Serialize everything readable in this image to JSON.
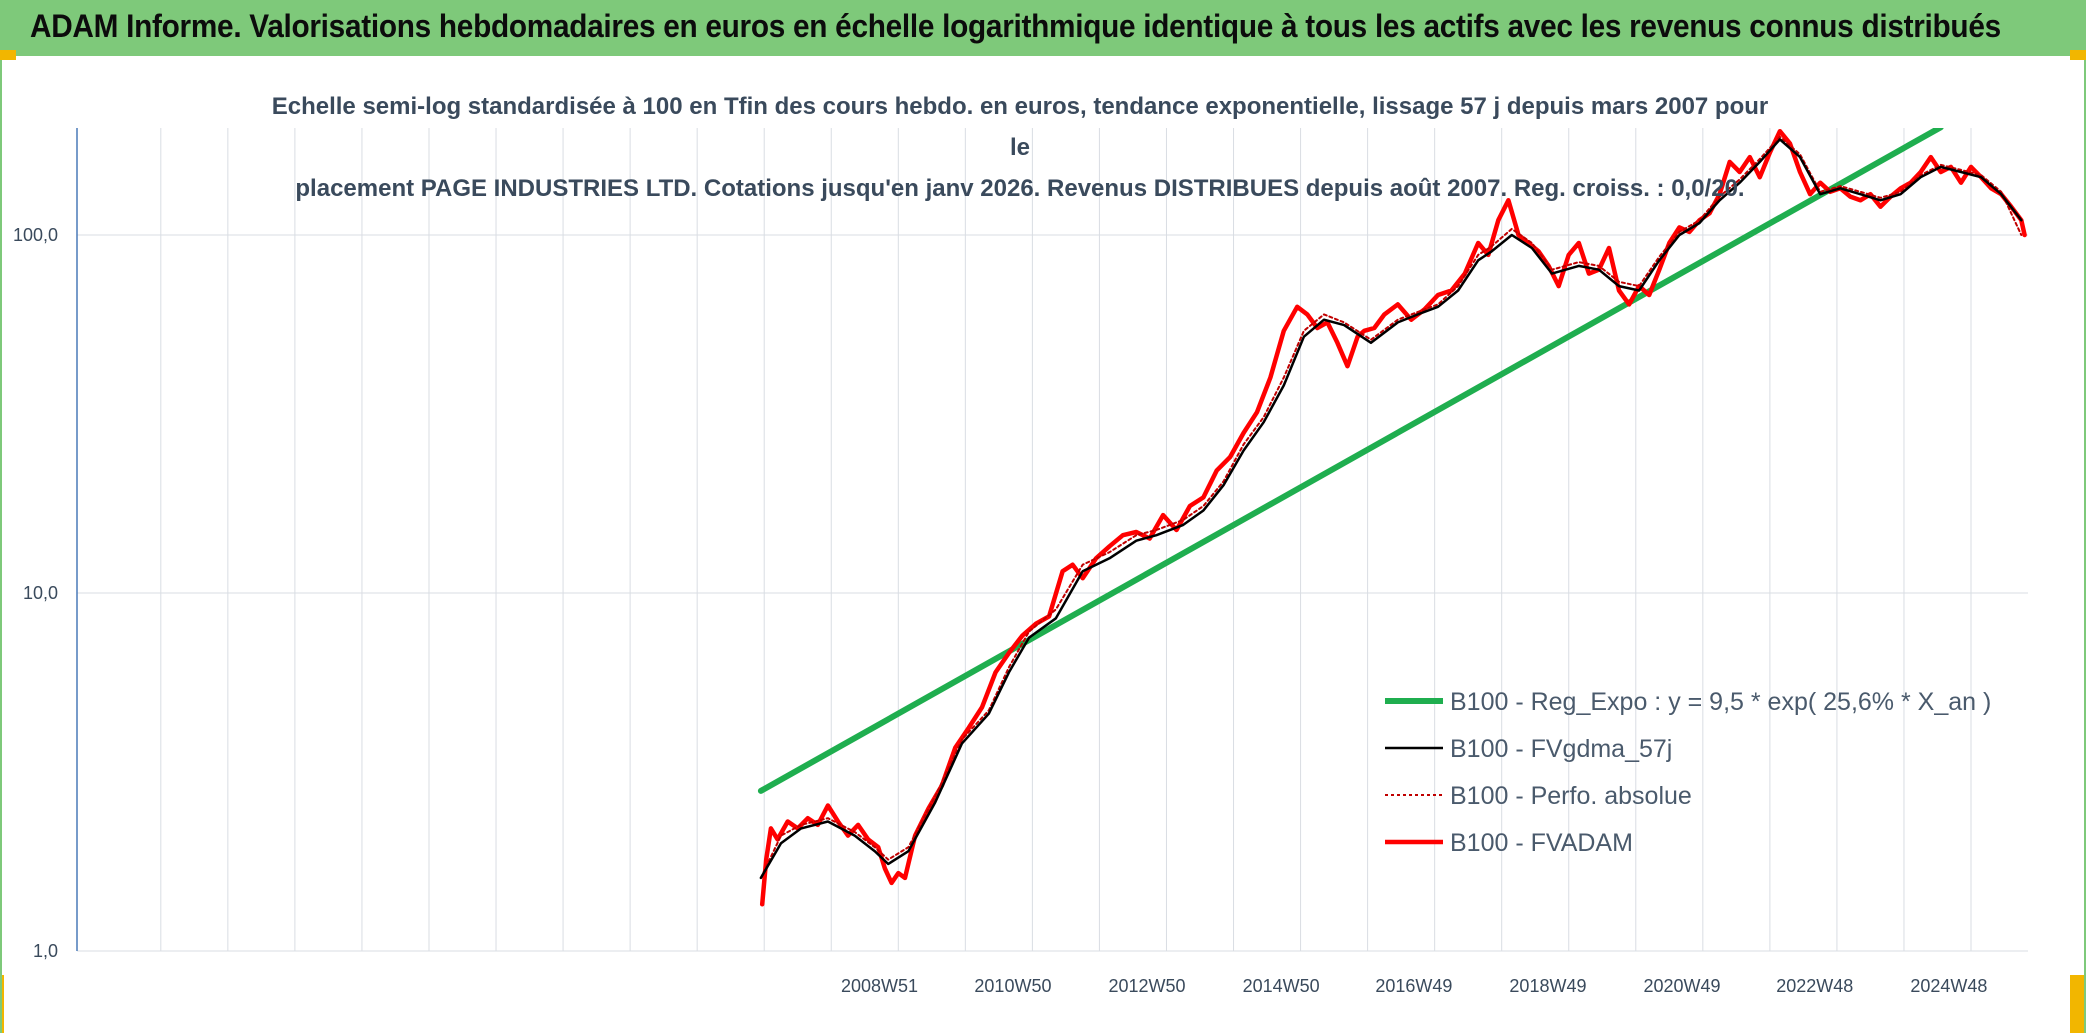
{
  "header": {
    "title": "ADAM Informe. Valorisations hebdomadaires en euros en échelle logarithmique identique à tous les actifs avec les revenus connus distribués"
  },
  "colors": {
    "header_bg": "#7ec97a",
    "corner_accent": "#f2b600",
    "reg_expo": "#1fae4f",
    "fvgdma": "#000000",
    "perfo": "#c00000",
    "fvadam": "#ff0000",
    "grid": "#d9dde3",
    "axis": "#4a7ab8"
  },
  "chart_data": {
    "type": "line",
    "subtitle_line1": "Echelle semi-log standardisée à 100 en Tfin des cours hebdo. en euros, tendance exponentielle, lissage 57 j depuis mars 2007 pour le",
    "subtitle_line2": "placement PAGE INDUSTRIES LTD. Cotations jusqu'en janv 2026. Revenus DISTRIBUES depuis août 2007. Reg. croiss. : 0,0/20.",
    "y_scale": "log",
    "ylim": [
      1,
      200
    ],
    "xlim": [
      1997.0,
      2026.1
    ],
    "y_ticks": [
      {
        "value": 1,
        "label": "1,0"
      },
      {
        "value": 10,
        "label": "10,0"
      },
      {
        "value": 100,
        "label": "100,0"
      }
    ],
    "x_ticks": [
      {
        "value": 2008.97,
        "label": "2008W51"
      },
      {
        "value": 2010.96,
        "label": "2010W50"
      },
      {
        "value": 2012.96,
        "label": "2012W50"
      },
      {
        "value": 2014.96,
        "label": "2014W50"
      },
      {
        "value": 2016.94,
        "label": "2016W49"
      },
      {
        "value": 2018.94,
        "label": "2018W49"
      },
      {
        "value": 2020.94,
        "label": "2020W49"
      },
      {
        "value": 2022.92,
        "label": "2022W48"
      },
      {
        "value": 2024.92,
        "label": "2024W48"
      }
    ],
    "grid": true,
    "legend_position": "right",
    "series": [
      {
        "name": "B100 - Reg_Expo : y = 9,5 * exp( 25,6% *  X_an )",
        "key": "reg_expo",
        "style": "solid-thick",
        "x": [
          2007.2,
          2024.8
        ],
        "y": [
          2.8,
          200
        ]
      },
      {
        "name": "B100 - FVgdma_57j",
        "key": "fvgdma",
        "style": "solid-thin",
        "x": [
          2007.2,
          2007.5,
          2007.8,
          2008.2,
          2008.6,
          2008.9,
          2009.1,
          2009.4,
          2009.8,
          2010.2,
          2010.6,
          2010.9,
          2011.2,
          2011.6,
          2012.0,
          2012.4,
          2012.8,
          2013.1,
          2013.5,
          2013.8,
          2014.1,
          2014.4,
          2014.7,
          2015.0,
          2015.3,
          2015.6,
          2015.9,
          2016.3,
          2016.7,
          2017.0,
          2017.3,
          2017.6,
          2017.9,
          2018.1,
          2018.4,
          2018.7,
          2019.0,
          2019.4,
          2019.7,
          2020.0,
          2020.3,
          2020.6,
          2020.9,
          2021.2,
          2021.5,
          2021.8,
          2022.1,
          2022.4,
          2022.7,
          2023.0,
          2023.3,
          2023.6,
          2023.9,
          2024.2,
          2024.5,
          2024.8,
          2025.1,
          2025.4,
          2025.7,
          2026.0
        ],
        "y": [
          1.6,
          2.0,
          2.2,
          2.3,
          2.1,
          1.9,
          1.75,
          1.9,
          2.6,
          3.8,
          4.6,
          6.0,
          7.5,
          8.5,
          11.5,
          12.5,
          14.0,
          14.5,
          15.5,
          17.0,
          20.0,
          25.0,
          30.0,
          38.0,
          52.0,
          58.0,
          56.0,
          50.0,
          57.0,
          60.0,
          63.0,
          70.0,
          85.0,
          90.0,
          100.0,
          92.0,
          78.0,
          82.0,
          80.0,
          72.0,
          70.0,
          85.0,
          100.0,
          108.0,
          125.0,
          140.0,
          160.0,
          185.0,
          165.0,
          130.0,
          135.0,
          130.0,
          125.0,
          130.0,
          145.0,
          155.0,
          150.0,
          145.0,
          130.0,
          110.0
        ]
      },
      {
        "name": "B100 - Perfo. absolue",
        "key": "perfo",
        "style": "dotted",
        "x": [
          2007.2,
          2007.5,
          2007.8,
          2008.2,
          2008.6,
          2008.9,
          2009.1,
          2009.4,
          2009.8,
          2010.2,
          2010.6,
          2010.9,
          2011.2,
          2011.6,
          2012.0,
          2012.4,
          2012.8,
          2013.1,
          2013.5,
          2013.8,
          2014.1,
          2014.4,
          2014.7,
          2015.0,
          2015.3,
          2015.6,
          2015.9,
          2016.3,
          2016.7,
          2017.0,
          2017.3,
          2017.6,
          2017.9,
          2018.1,
          2018.4,
          2018.7,
          2019.0,
          2019.4,
          2019.7,
          2020.0,
          2020.3,
          2020.6,
          2020.9,
          2021.2,
          2021.5,
          2021.8,
          2022.1,
          2022.4,
          2022.7,
          2023.0,
          2023.3,
          2023.6,
          2023.9,
          2024.2,
          2024.5,
          2024.8,
          2025.1,
          2025.4,
          2025.7,
          2026.0
        ],
        "y": [
          1.6,
          2.1,
          2.25,
          2.35,
          2.15,
          1.95,
          1.8,
          1.95,
          2.7,
          3.9,
          4.7,
          6.2,
          7.8,
          9.0,
          12.0,
          13.0,
          14.5,
          15.0,
          16.0,
          17.5,
          20.5,
          26.0,
          31.0,
          40.0,
          54.0,
          60.0,
          57.0,
          51.0,
          58.0,
          61.0,
          64.0,
          72.0,
          88.0,
          93.0,
          104.0,
          95.0,
          80.0,
          84.0,
          82.0,
          74.0,
          72.0,
          87.0,
          102.0,
          110.0,
          128.0,
          143.0,
          163.0,
          188.0,
          168.0,
          132.0,
          137.0,
          132.0,
          127.0,
          132.0,
          147.0,
          157.0,
          152.0,
          147.0,
          132.0,
          100.0
        ]
      },
      {
        "name": "B100 - FVADAM",
        "key": "fvadam",
        "style": "solid-medium",
        "x": [
          2007.22,
          2007.28,
          2007.35,
          2007.45,
          2007.6,
          2007.75,
          2007.9,
          2008.05,
          2008.2,
          2008.35,
          2008.5,
          2008.65,
          2008.8,
          2008.95,
          2009.05,
          2009.15,
          2009.25,
          2009.35,
          2009.5,
          2009.7,
          2009.9,
          2010.1,
          2010.3,
          2010.5,
          2010.7,
          2010.9,
          2011.1,
          2011.3,
          2011.5,
          2011.7,
          2011.85,
          2012.0,
          2012.2,
          2012.4,
          2012.6,
          2012.8,
          2013.0,
          2013.2,
          2013.4,
          2013.6,
          2013.8,
          2014.0,
          2014.2,
          2014.4,
          2014.6,
          2014.8,
          2015.0,
          2015.2,
          2015.35,
          2015.5,
          2015.65,
          2015.8,
          2015.95,
          2016.1,
          2016.2,
          2016.35,
          2016.5,
          2016.7,
          2016.9,
          2017.1,
          2017.3,
          2017.5,
          2017.7,
          2017.9,
          2018.05,
          2018.2,
          2018.35,
          2018.5,
          2018.65,
          2018.8,
          2018.95,
          2019.1,
          2019.25,
          2019.4,
          2019.55,
          2019.7,
          2019.85,
          2020.0,
          2020.15,
          2020.3,
          2020.45,
          2020.6,
          2020.75,
          2020.9,
          2021.05,
          2021.2,
          2021.35,
          2021.5,
          2021.65,
          2021.8,
          2021.95,
          2022.1,
          2022.25,
          2022.4,
          2022.55,
          2022.7,
          2022.85,
          2023.0,
          2023.15,
          2023.3,
          2023.45,
          2023.6,
          2023.75,
          2023.9,
          2024.05,
          2024.2,
          2024.35,
          2024.5,
          2024.65,
          2024.8,
          2024.95,
          2025.1,
          2025.25,
          2025.4,
          2025.55,
          2025.7,
          2025.85,
          2026.0,
          2026.05
        ],
        "y": [
          1.35,
          1.8,
          2.2,
          2.05,
          2.3,
          2.2,
          2.35,
          2.25,
          2.55,
          2.3,
          2.1,
          2.25,
          2.05,
          1.95,
          1.7,
          1.55,
          1.65,
          1.6,
          2.1,
          2.5,
          2.9,
          3.7,
          4.2,
          4.8,
          6.0,
          6.8,
          7.6,
          8.2,
          8.6,
          11.5,
          12.0,
          11.0,
          12.5,
          13.5,
          14.5,
          14.8,
          14.2,
          16.5,
          15.0,
          17.5,
          18.5,
          22.0,
          24.0,
          28.0,
          32.0,
          40.0,
          54.0,
          63.0,
          60.0,
          55.0,
          57.0,
          50.0,
          43.0,
          52.0,
          54.0,
          55.0,
          60.0,
          64.0,
          58.0,
          62.0,
          68.0,
          70.0,
          78.0,
          95.0,
          88.0,
          110.0,
          125.0,
          100.0,
          95.0,
          90.0,
          82.0,
          72.0,
          88.0,
          95.0,
          78.0,
          80.0,
          92.0,
          70.0,
          64.0,
          72.0,
          68.0,
          80.0,
          95.0,
          105.0,
          102.0,
          110.0,
          115.0,
          130.0,
          160.0,
          150.0,
          165.0,
          145.0,
          170.0,
          195.0,
          180.0,
          150.0,
          130.0,
          140.0,
          132.0,
          135.0,
          128.0,
          125.0,
          130.0,
          120.0,
          128.0,
          135.0,
          140.0,
          150.0,
          165.0,
          150.0,
          155.0,
          140.0,
          155.0,
          145.0,
          135.0,
          130.0,
          120.0,
          110.0,
          100.0
        ]
      }
    ]
  }
}
